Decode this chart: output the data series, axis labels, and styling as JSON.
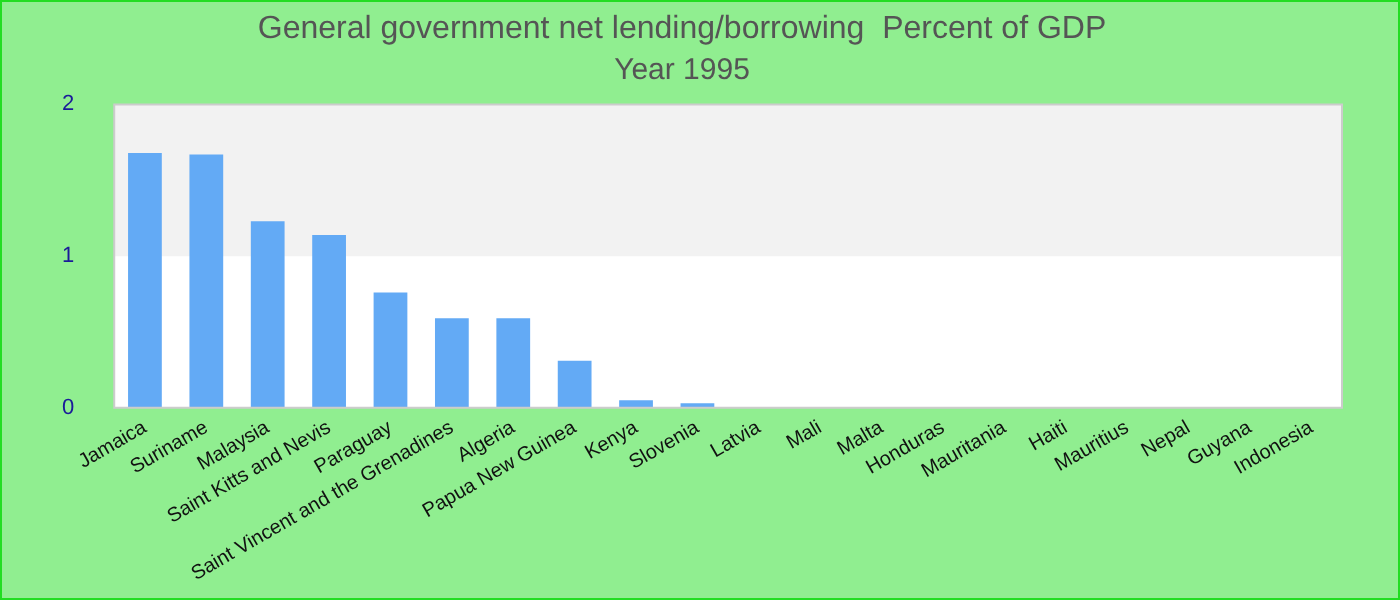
{
  "chart_data": {
    "type": "bar",
    "title": "General government net lending/borrowing  Percent of GDP",
    "subtitle": "Year 1995",
    "categories": [
      "Jamaica",
      "Suriname",
      "Malaysia",
      "Saint Kitts and Nevis",
      "Paraguay",
      "Saint Vincent and the Grenadines",
      "Algeria",
      "Papua New Guinea",
      "Kenya",
      "Slovenia",
      "Latvia",
      "Mali",
      "Malta",
      "Honduras",
      "Mauritania",
      "Haiti",
      "Mauritius",
      "Nepal",
      "Guyana",
      "Indonesia"
    ],
    "values": [
      1.68,
      1.67,
      1.23,
      1.14,
      0.76,
      0.59,
      0.59,
      0.31,
      0.05,
      0.03,
      0,
      0,
      0,
      0,
      0,
      0,
      0,
      0,
      0,
      0
    ],
    "color": "#63aaf5",
    "ylim": [
      0,
      2
    ],
    "yticks": [
      0,
      1,
      2
    ],
    "grid": false,
    "bands": [
      {
        "axis": "y",
        "from": 1,
        "to": 2,
        "color": "#f2f2f2"
      }
    ]
  }
}
